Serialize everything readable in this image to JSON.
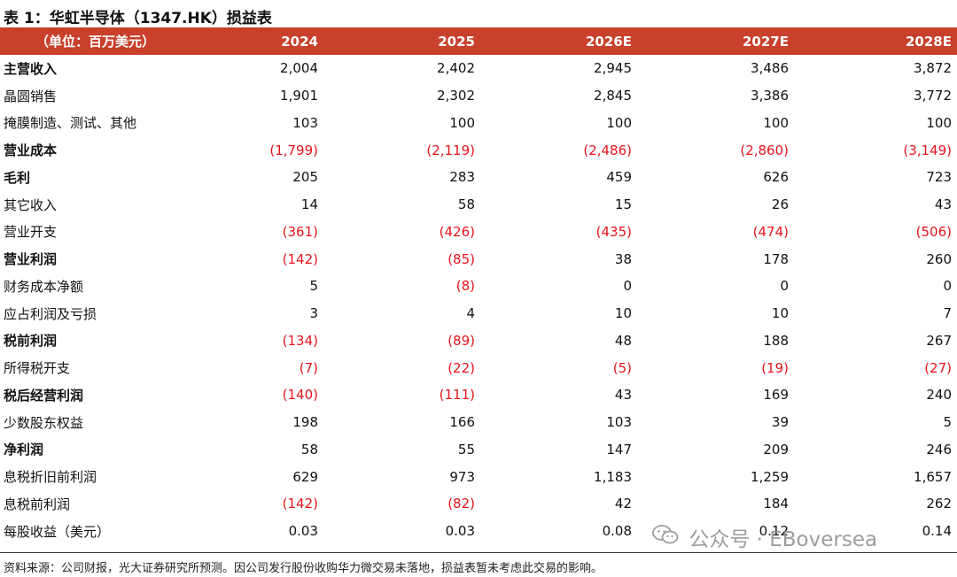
{
  "title": "表 1：华虹半导体（1347.HK）损益表",
  "header": [
    "（单位：百万美元）",
    "2024",
    "2025",
    "2026E",
    "2027E",
    "2028E"
  ],
  "rows": [
    {
      "label": "主营收入",
      "bold": true,
      "values": [
        "2,004",
        "2,402",
        "2,945",
        "3,486",
        "3,872"
      ]
    },
    {
      "label": "晶圆销售",
      "bold": false,
      "values": [
        "1,901",
        "2,302",
        "2,845",
        "3,386",
        "3,772"
      ]
    },
    {
      "label": "掩膜制造、测试、其他",
      "bold": false,
      "values": [
        "103",
        "100",
        "100",
        "100",
        "100"
      ]
    },
    {
      "label": "营业成本",
      "bold": true,
      "values": [
        "(1,799)",
        "(2,119)",
        "(2,486)",
        "(2,860)",
        "(3,149)"
      ]
    },
    {
      "label": "毛利",
      "bold": true,
      "values": [
        "205",
        "283",
        "459",
        "626",
        "723"
      ]
    },
    {
      "label": "其它收入",
      "bold": false,
      "values": [
        "14",
        "58",
        "15",
        "26",
        "43"
      ]
    },
    {
      "label": "营业开支",
      "bold": false,
      "values": [
        "(361)",
        "(426)",
        "(435)",
        "(474)",
        "(506)"
      ]
    },
    {
      "label": "营业利润",
      "bold": true,
      "values": [
        "(142)",
        "(85)",
        "38",
        "178",
        "260"
      ]
    },
    {
      "label": "财务成本净额",
      "bold": false,
      "values": [
        "5",
        "(8)",
        "0",
        "0",
        "0"
      ]
    },
    {
      "label": "应占利润及亏损",
      "bold": false,
      "values": [
        "3",
        "4",
        "10",
        "10",
        "7"
      ]
    },
    {
      "label": "税前利润",
      "bold": true,
      "values": [
        "(134)",
        "(89)",
        "48",
        "188",
        "267"
      ]
    },
    {
      "label": "所得税开支",
      "bold": false,
      "values": [
        "(7)",
        "(22)",
        "(5)",
        "(19)",
        "(27)"
      ]
    },
    {
      "label": "税后经营利润",
      "bold": true,
      "values": [
        "(140)",
        "(111)",
        "43",
        "169",
        "240"
      ]
    },
    {
      "label": "少数股东权益",
      "bold": false,
      "values": [
        "198",
        "166",
        "103",
        "39",
        "5"
      ]
    },
    {
      "label": "净利润",
      "bold": true,
      "values": [
        "58",
        "55",
        "147",
        "209",
        "246"
      ]
    },
    {
      "label": "息税折旧前利润",
      "bold": false,
      "values": [
        "629",
        "973",
        "1,183",
        "1,259",
        "1,657"
      ]
    },
    {
      "label": "息税前利润",
      "bold": false,
      "values": [
        "(142)",
        "(82)",
        "42",
        "184",
        "262"
      ]
    },
    {
      "label": "每股收益（美元）",
      "bold": false,
      "values": [
        "0.03",
        "0.03",
        "0.08",
        "0.12",
        "0.14"
      ]
    }
  ],
  "footer": "资料来源：公司财报，光大证券研究所预测。因公司发行股份收购华力微交易未落地，损益表暂未考虑此交易的影响。",
  "watermark": {
    "text": "公众号 · EBoversea",
    "icon": "wechat-icon"
  },
  "colors": {
    "header_bg": "#c9402c",
    "negative": "#e8141c"
  }
}
